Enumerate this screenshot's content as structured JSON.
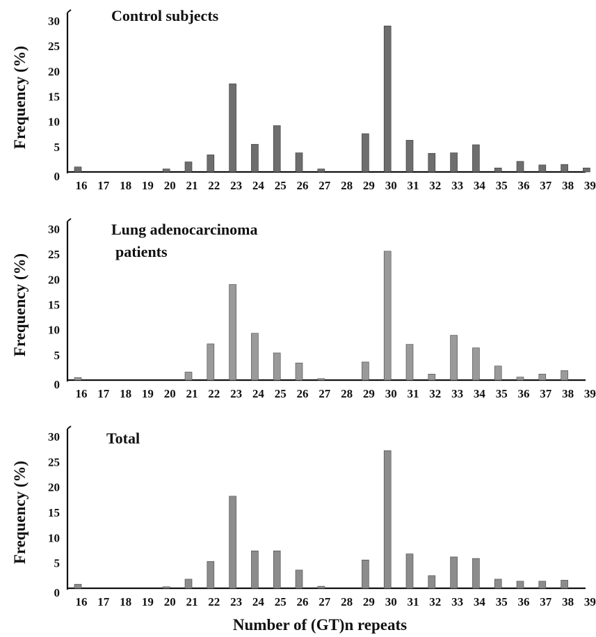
{
  "chart_data": [
    {
      "type": "bar",
      "title_lines": [
        "Control subjects"
      ],
      "ylabel": "Frequency (%)",
      "xlabel": "",
      "ylim": [
        0,
        30
      ],
      "yticks": [
        "0",
        "5",
        "10",
        "15",
        "20",
        "25",
        "30"
      ],
      "categories": [
        "16",
        "17",
        "18",
        "19",
        "20",
        "21",
        "22",
        "23",
        "24",
        "25",
        "26",
        "27",
        "28",
        "29",
        "30",
        "31",
        "32",
        "33",
        "34",
        "35",
        "36",
        "37",
        "38",
        "39"
      ],
      "values": [
        1,
        0,
        0,
        0,
        0.6,
        2,
        3.4,
        17.5,
        5.5,
        9.2,
        3.8,
        0.6,
        0,
        7.6,
        29,
        6.3,
        3.7,
        3.8,
        5.4,
        0.8,
        2.1,
        1.4,
        1.5,
        0.8
      ]
    },
    {
      "type": "bar",
      "title_lines": [
        "Lung adenocarcinoma",
        "patients"
      ],
      "ylabel": "Frequency (%)",
      "xlabel": "",
      "ylim": [
        0,
        30
      ],
      "yticks": [
        "0",
        "5",
        "10",
        "15",
        "20",
        "25",
        "30"
      ],
      "categories": [
        "16",
        "17",
        "18",
        "19",
        "20",
        "21",
        "22",
        "23",
        "24",
        "25",
        "26",
        "27",
        "28",
        "29",
        "30",
        "31",
        "32",
        "33",
        "34",
        "35",
        "36",
        "37",
        "38",
        "39"
      ],
      "values": [
        0.5,
        0,
        0,
        0,
        0,
        1.6,
        7.2,
        19,
        9.3,
        5.4,
        3.4,
        0.3,
        0,
        3.6,
        25.6,
        7.1,
        1.2,
        8.9,
        6.4,
        2.8,
        0.6,
        1.2,
        1.9,
        0
      ]
    },
    {
      "type": "bar",
      "title_lines": [
        "Total"
      ],
      "ylabel": "Frequency (%)",
      "xlabel": "Number of (GT)n repeats",
      "ylim": [
        0,
        30
      ],
      "yticks": [
        "0",
        "5",
        "10",
        "15",
        "20",
        "25",
        "30"
      ],
      "categories": [
        "16",
        "17",
        "18",
        "19",
        "20",
        "21",
        "22",
        "23",
        "24",
        "25",
        "26",
        "27",
        "28",
        "29",
        "30",
        "31",
        "32",
        "33",
        "34",
        "35",
        "36",
        "37",
        "38",
        "39"
      ],
      "values": [
        0.8,
        0,
        0,
        0,
        0.3,
        1.8,
        5.3,
        18.2,
        7.4,
        7.4,
        3.6,
        0.4,
        0,
        5.6,
        27.2,
        6.8,
        2.5,
        6.2,
        5.9,
        1.8,
        1.4,
        1.4,
        1.6,
        0
      ]
    }
  ]
}
